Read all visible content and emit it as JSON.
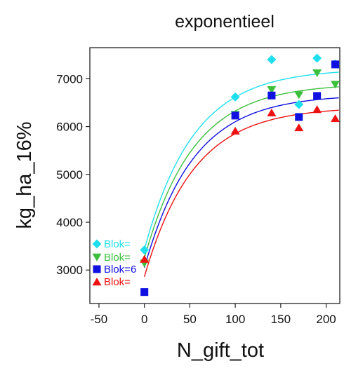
{
  "chart_data": {
    "type": "scatter",
    "title": "exponentieel",
    "xlabel": "N_gift_tot",
    "ylabel": "kg_ha_16%",
    "xlim": [
      -60,
      215
    ],
    "ylim": [
      2300,
      7650
    ],
    "xticks": [
      -50,
      0,
      50,
      100,
      150,
      200
    ],
    "yticks": [
      3000,
      4000,
      5000,
      6000,
      7000
    ],
    "grid": false,
    "legend_position": "left, stacked labels near x = -50",
    "series": [
      {
        "name": "Blok=",
        "color": "#1fdfee",
        "marker": "diamond",
        "points": [
          [
            0,
            3420
          ],
          [
            100,
            6620
          ],
          [
            140,
            7400
          ],
          [
            170,
            6460
          ],
          [
            190,
            7430
          ],
          [
            210,
            7310
          ]
        ],
        "fit": {
          "base": 3430,
          "amplitude": 3780,
          "rate": 0.0185,
          "x_from": 0
        }
      },
      {
        "name": "Blok=",
        "color": "#3cbf3c",
        "marker": "triangle-down",
        "points": [
          [
            0,
            3140
          ],
          [
            100,
            6250
          ],
          [
            140,
            6770
          ],
          [
            170,
            6660
          ],
          [
            190,
            7120
          ],
          [
            210,
            6880
          ]
        ],
        "fit": {
          "base": 3250,
          "amplitude": 3650,
          "rate": 0.0185,
          "x_from": 0
        }
      },
      {
        "name": "Blok=6",
        "color": "#1010e0",
        "marker": "square",
        "points": [
          [
            0,
            2540
          ],
          [
            100,
            6230
          ],
          [
            140,
            6650
          ],
          [
            170,
            6200
          ],
          [
            190,
            6640
          ],
          [
            210,
            7300
          ]
        ],
        "fit": {
          "base": 3050,
          "amplitude": 3620,
          "rate": 0.0185,
          "x_from": 0
        }
      },
      {
        "name": "Blok=",
        "color": "#ee1111",
        "marker": "triangle-up",
        "points": [
          [
            0,
            3230
          ],
          [
            100,
            5910
          ],
          [
            140,
            6290
          ],
          [
            170,
            5980
          ],
          [
            190,
            6360
          ],
          [
            210,
            6170
          ]
        ],
        "fit": {
          "base": 2860,
          "amplitude": 3550,
          "rate": 0.0185,
          "x_from": 0
        }
      }
    ],
    "legend": [
      {
        "label": "Blok=",
        "color": "#1fdfee",
        "marker": "diamond"
      },
      {
        "label": "Blok=",
        "color": "#3cbf3c",
        "marker": "triangle-down"
      },
      {
        "label": "Blok=6",
        "color": "#1010e0",
        "marker": "square"
      },
      {
        "label": "Blok=",
        "color": "#ee1111",
        "marker": "triangle-up"
      }
    ]
  }
}
